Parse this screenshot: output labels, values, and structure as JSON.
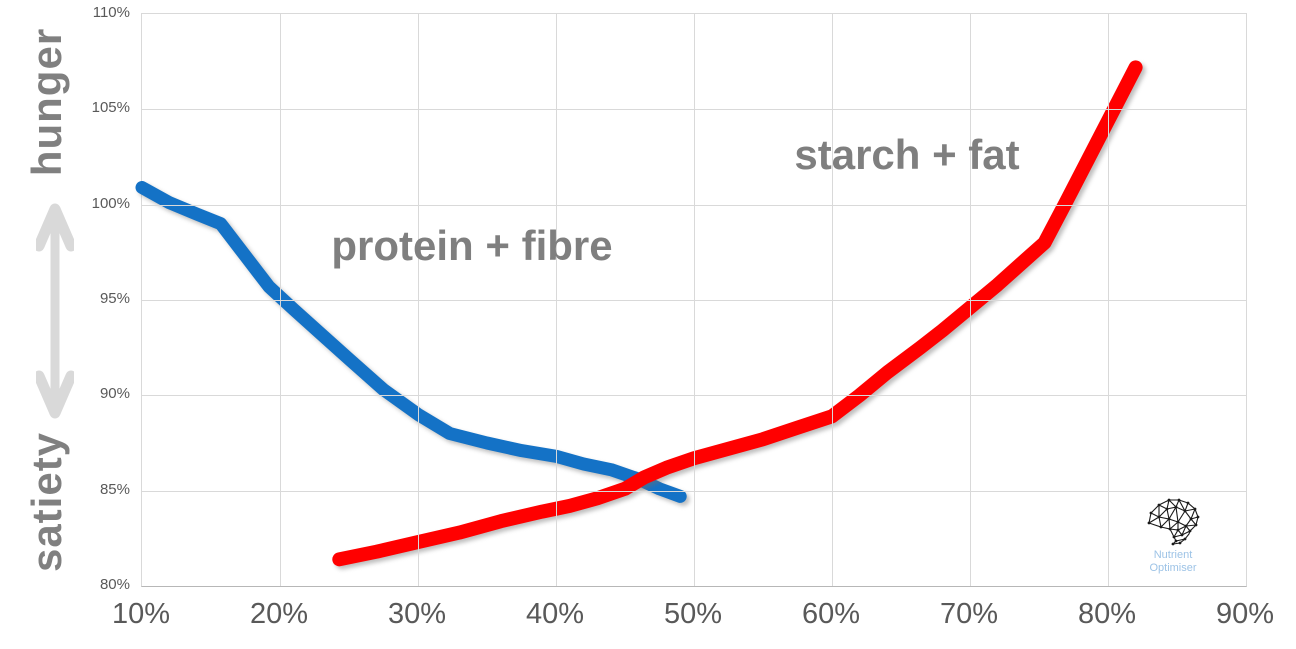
{
  "figure_title": "",
  "axis_annotations": {
    "top": "hunger",
    "bottom": "satiety"
  },
  "logo": {
    "line1": "Nutrient",
    "line2": "Optimiser",
    "icon": "brain-network-icon",
    "text_color": "#9dc3e6"
  },
  "colors": {
    "blue_series": "#1472C6",
    "red_series": "#FF0000",
    "series_label_gray": "#7f7f7f",
    "axis_text_gray": "#595959",
    "gridline_gray": "#d9d9d9",
    "arrow_gray": "#d9d9d9"
  },
  "chart_data": {
    "type": "line",
    "title": "",
    "xlabel": "",
    "ylabel": "hunger / satiety",
    "xlim": [
      10,
      90
    ],
    "ylim": [
      80,
      110
    ],
    "grid": true,
    "legend_position": "inline-labels",
    "x_tick_labels": [
      "10%",
      "20%",
      "30%",
      "40%",
      "50%",
      "60%",
      "70%",
      "80%",
      "90%"
    ],
    "x_tick_values": [
      10,
      20,
      30,
      40,
      50,
      60,
      70,
      80,
      90
    ],
    "y_tick_labels": [
      "80%",
      "85%",
      "90%",
      "95%",
      "100%",
      "105%",
      "110%"
    ],
    "y_tick_values": [
      80,
      85,
      90,
      95,
      100,
      105,
      110
    ],
    "series": [
      {
        "id": "protein-fibre-line",
        "name": "protein + fibre",
        "color": "#1472C6",
        "stroke_width": 13,
        "points": [
          [
            10,
            100.9
          ],
          [
            12,
            100.1
          ],
          [
            14,
            99.5
          ],
          [
            15.7,
            99.0
          ],
          [
            17.5,
            97.3
          ],
          [
            19.2,
            95.7
          ],
          [
            21,
            94.5
          ],
          [
            23,
            93.2
          ],
          [
            25,
            91.9
          ],
          [
            27.5,
            90.3
          ],
          [
            30,
            89.0
          ],
          [
            32.3,
            88.0
          ],
          [
            35,
            87.5
          ],
          [
            37.5,
            87.1
          ],
          [
            40,
            86.8
          ],
          [
            42,
            86.4
          ],
          [
            44,
            86.1
          ],
          [
            46,
            85.6
          ],
          [
            47.5,
            85.1
          ],
          [
            49,
            84.7
          ]
        ]
      },
      {
        "id": "starch-fat-line",
        "name": "starch + fat",
        "color": "#FF0000",
        "stroke_width": 14,
        "points": [
          [
            24.3,
            81.4
          ],
          [
            27,
            81.8
          ],
          [
            30,
            82.3
          ],
          [
            33,
            82.8
          ],
          [
            36,
            83.4
          ],
          [
            39,
            83.9
          ],
          [
            41,
            84.2
          ],
          [
            43,
            84.6
          ],
          [
            45,
            85.1
          ],
          [
            46.4,
            85.7
          ],
          [
            48,
            86.2
          ],
          [
            50,
            86.7
          ],
          [
            52.5,
            87.2
          ],
          [
            55,
            87.7
          ],
          [
            57.5,
            88.3
          ],
          [
            60,
            88.9
          ],
          [
            62,
            90.0
          ],
          [
            64,
            91.2
          ],
          [
            66.4,
            92.5
          ],
          [
            68,
            93.4
          ],
          [
            70,
            94.6
          ],
          [
            72,
            95.8
          ],
          [
            74,
            97.1
          ],
          [
            75.4,
            98.0
          ],
          [
            77,
            100.2
          ],
          [
            79,
            103.0
          ],
          [
            81,
            105.8
          ],
          [
            82,
            107.2
          ]
        ]
      }
    ],
    "annotations": [
      {
        "text": "protein + fibre",
        "series": "protein-fibre-line"
      },
      {
        "text": "starch + fat",
        "series": "starch-fat-line"
      }
    ]
  }
}
